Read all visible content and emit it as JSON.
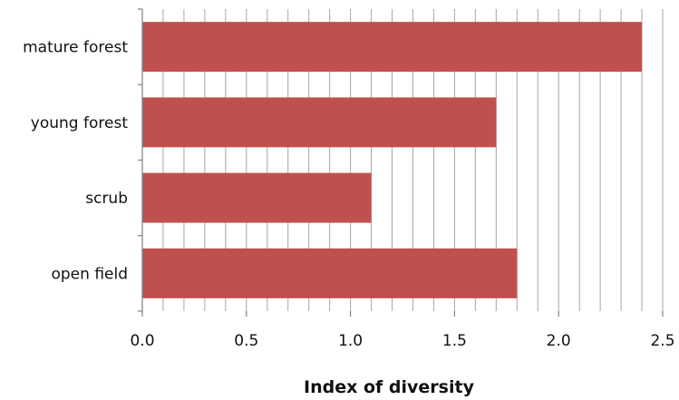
{
  "chart_data": {
    "type": "bar",
    "orientation": "horizontal",
    "categories": [
      "mature forest",
      "young forest",
      "scrub",
      "open field"
    ],
    "values": [
      2.4,
      1.7,
      1.1,
      1.8
    ],
    "xlabel": "Index of diversity",
    "ylabel": "",
    "title": "",
    "xlim": [
      0,
      2.5
    ],
    "xticks": [
      "0.0",
      "0.5",
      "1.0",
      "1.5",
      "2.0",
      "2.5"
    ],
    "minor_grid_step": 0.1,
    "grid": true,
    "legend": false,
    "bar_color": "#c0504d",
    "gridline_color": "#a6a6a6"
  }
}
